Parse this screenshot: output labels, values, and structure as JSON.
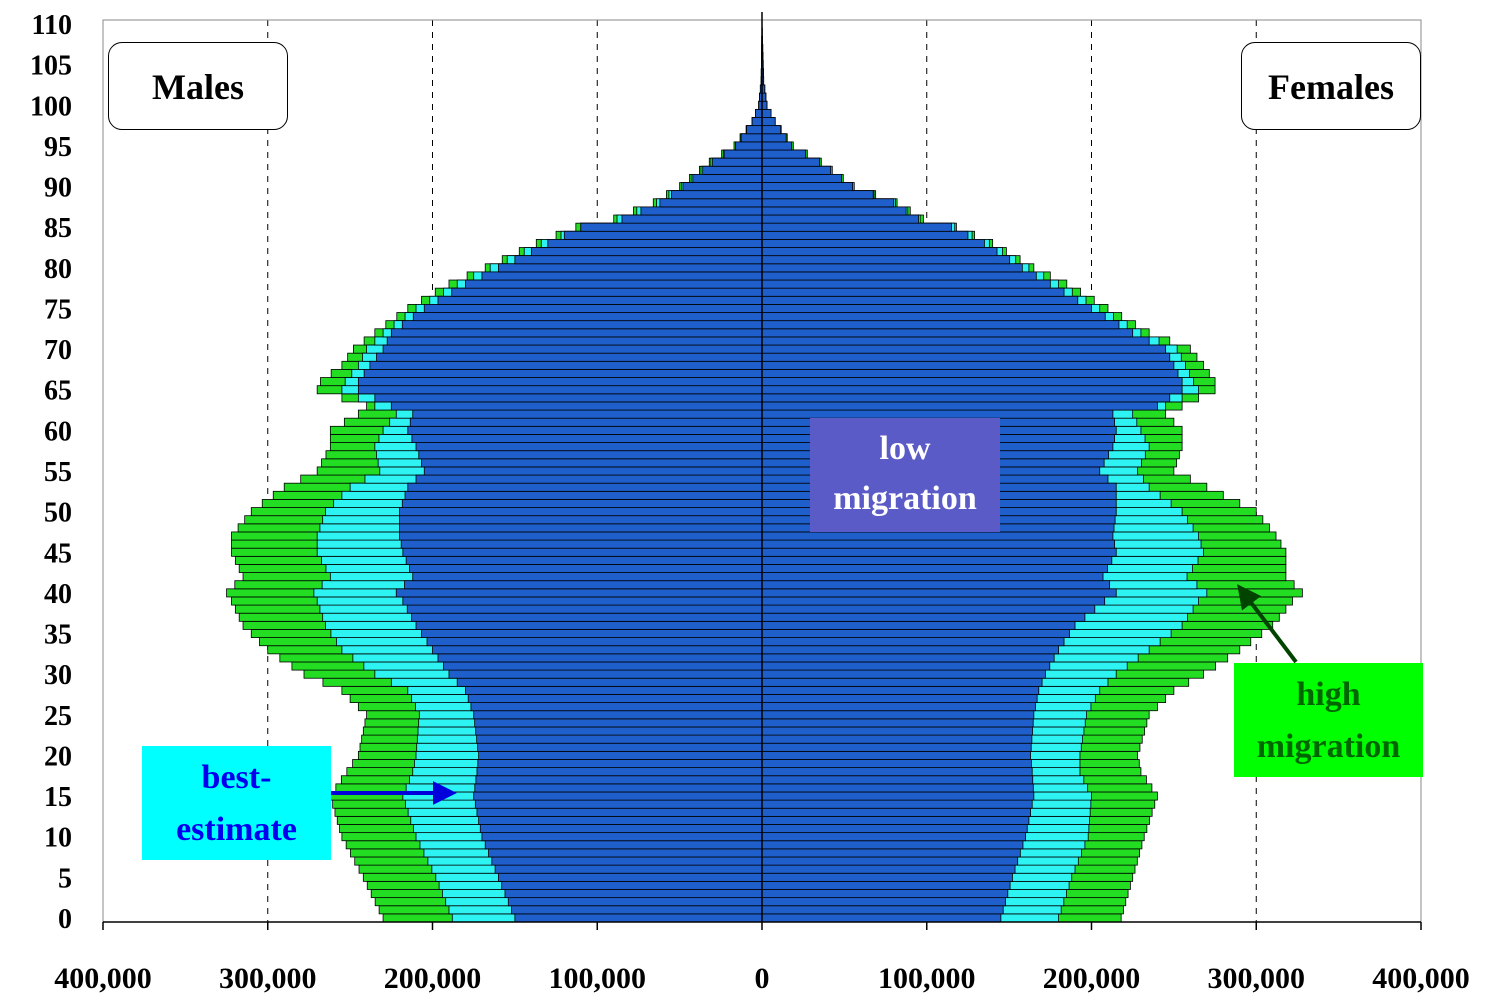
{
  "chart_data": {
    "type": "bar",
    "orientation": "horizontal-population-pyramid",
    "y_tick_labels": [
      "0",
      "5",
      "10",
      "15",
      "20",
      "25",
      "30",
      "35",
      "40",
      "45",
      "50",
      "55",
      "60",
      "65",
      "70",
      "75",
      "80",
      "85",
      "90",
      "95",
      "100",
      "105",
      "110"
    ],
    "x_tick_labels": [
      "400,000",
      "300,000",
      "200,000",
      "100,000",
      "0",
      "100,000",
      "200,000",
      "300,000",
      "400,000"
    ],
    "xlim": [
      -400000,
      400000
    ],
    "ylim": [
      0,
      110
    ],
    "grid": "vertical dashed",
    "colors": {
      "low": "#1f5fcc",
      "best": "#2ef3f3",
      "high": "#22dd22",
      "outline": "#000000"
    },
    "age_knots": [
      0,
      5,
      10,
      15,
      18,
      20,
      25,
      28,
      30,
      33,
      36,
      39,
      40,
      42,
      45,
      47,
      50,
      53,
      55,
      58,
      60,
      62,
      63,
      65,
      66,
      68,
      70,
      72,
      75,
      78,
      80,
      83,
      85,
      86,
      88,
      90,
      93,
      95,
      98,
      100,
      103,
      110
    ],
    "series": [
      {
        "name": "low migration",
        "males": [
          150000,
          160000,
          170000,
          175000,
          173000,
          172000,
          175000,
          180000,
          190000,
          200000,
          210000,
          218000,
          222000,
          212000,
          218000,
          220000,
          220000,
          215000,
          205000,
          210000,
          215000,
          212000,
          225000,
          245000,
          245000,
          238000,
          230000,
          225000,
          205000,
          180000,
          160000,
          130000,
          110000,
          85000,
          62000,
          48000,
          30000,
          16000,
          6000,
          2000,
          500,
          0
        ],
        "females": [
          145000,
          152000,
          160000,
          165000,
          164000,
          163000,
          165000,
          168000,
          172000,
          180000,
          190000,
          208000,
          215000,
          207000,
          215000,
          213000,
          215000,
          215000,
          205000,
          213000,
          215000,
          213000,
          240000,
          255000,
          255000,
          250000,
          245000,
          225000,
          200000,
          175000,
          158000,
          135000,
          115000,
          95000,
          80000,
          55000,
          35000,
          18000,
          8000,
          3000,
          1000,
          0
        ]
      },
      {
        "name": "best-estimate",
        "males": [
          188000,
          198000,
          210000,
          218000,
          212000,
          210000,
          208000,
          215000,
          235000,
          255000,
          265000,
          270000,
          272000,
          262000,
          270000,
          270000,
          265000,
          250000,
          232000,
          235000,
          230000,
          222000,
          235000,
          255000,
          253000,
          245000,
          240000,
          230000,
          210000,
          185000,
          165000,
          134000,
          110000,
          88000,
          64000,
          49000,
          31000,
          16000,
          6000,
          2000,
          500,
          0
        ],
        "females": [
          180000,
          188000,
          198000,
          200000,
          193000,
          193000,
          197000,
          205000,
          215000,
          235000,
          255000,
          265000,
          270000,
          258000,
          268000,
          265000,
          255000,
          235000,
          228000,
          235000,
          230000,
          225000,
          245000,
          265000,
          262000,
          257000,
          252000,
          230000,
          205000,
          180000,
          162000,
          138000,
          117000,
          96000,
          81000,
          55000,
          35000,
          18000,
          8000,
          3000,
          1000,
          0
        ]
      },
      {
        "name": "high migration",
        "males": [
          230000,
          242000,
          255000,
          262000,
          252000,
          245000,
          240000,
          255000,
          278000,
          300000,
          315000,
          322000,
          325000,
          315000,
          322000,
          322000,
          310000,
          290000,
          270000,
          262000,
          262000,
          245000,
          240000,
          270000,
          268000,
          255000,
          248000,
          235000,
          215000,
          190000,
          168000,
          137000,
          113000,
          90000,
          66000,
          50000,
          32000,
          17000,
          6000,
          2000,
          500,
          0
        ],
        "females": [
          218000,
          225000,
          232000,
          240000,
          230000,
          228000,
          235000,
          250000,
          268000,
          290000,
          310000,
          322000,
          328000,
          318000,
          318000,
          312000,
          300000,
          270000,
          250000,
          255000,
          255000,
          245000,
          255000,
          275000,
          275000,
          268000,
          260000,
          235000,
          210000,
          185000,
          165000,
          140000,
          118000,
          98000,
          82000,
          56000,
          36000,
          19000,
          8000,
          3000,
          1000,
          0
        ]
      }
    ]
  },
  "annotations": {
    "males": "Males",
    "females": "Females",
    "low_line1": "low",
    "low_line2": "migration",
    "best_line1": "best-",
    "best_line2": "estimate",
    "high_line1": "high",
    "high_line2": "migration"
  }
}
